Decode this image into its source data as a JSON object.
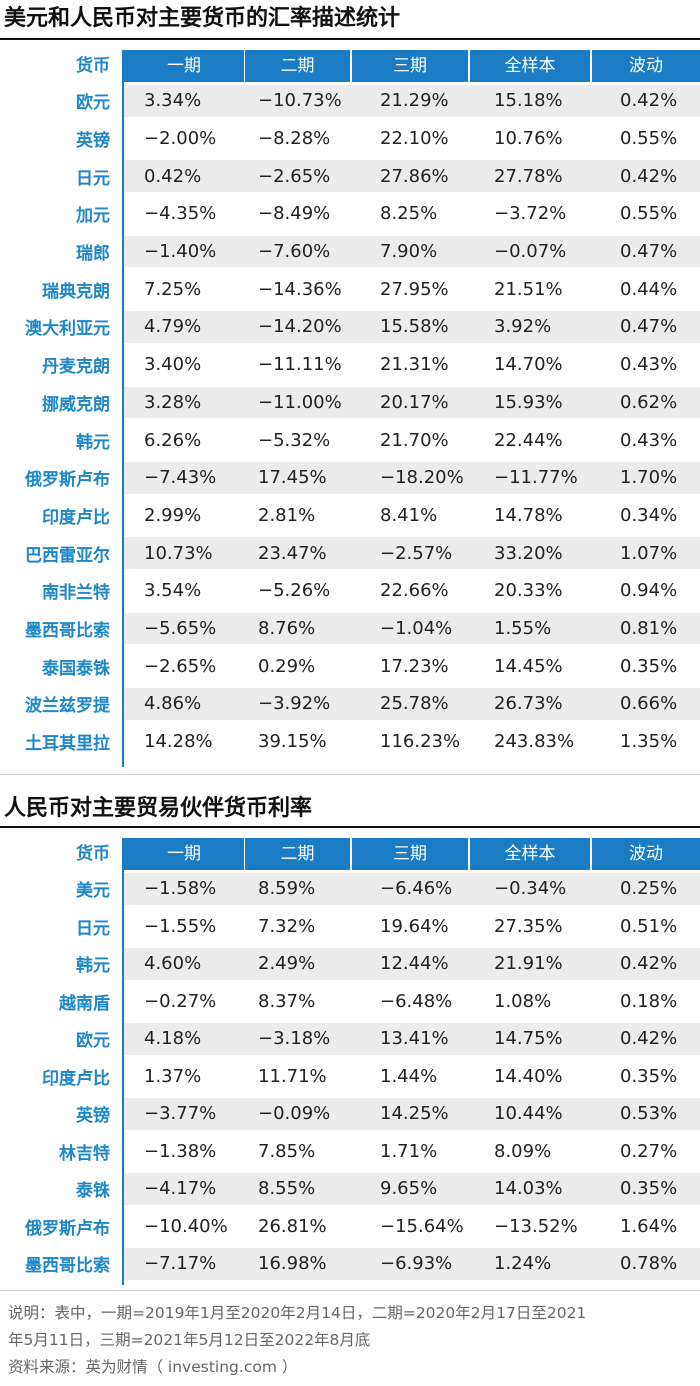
{
  "table1": {
    "title": "美元和人民币对主要货币的汇率描述统计",
    "row_header": "货币",
    "columns": [
      "一期",
      "二期",
      "三期",
      "全样本",
      "波动"
    ],
    "rows": [
      {
        "name": "欧元",
        "values": [
          "3.34%",
          "−10.73%",
          "21.29%",
          "15.18%",
          "0.42%"
        ]
      },
      {
        "name": "英镑",
        "values": [
          "−2.00%",
          "−8.28%",
          "22.10%",
          "10.76%",
          "0.55%"
        ]
      },
      {
        "name": "日元",
        "values": [
          "0.42%",
          "−2.65%",
          "27.86%",
          "27.78%",
          "0.42%"
        ]
      },
      {
        "name": "加元",
        "values": [
          "−4.35%",
          "−8.49%",
          "8.25%",
          "−3.72%",
          "0.55%"
        ]
      },
      {
        "name": "瑞郎",
        "values": [
          "−1.40%",
          "−7.60%",
          "7.90%",
          "−0.07%",
          "0.47%"
        ]
      },
      {
        "name": "瑞典克朗",
        "values": [
          "7.25%",
          "−14.36%",
          "27.95%",
          "21.51%",
          "0.44%"
        ]
      },
      {
        "name": "澳大利亚元",
        "values": [
          "4.79%",
          "−14.20%",
          "15.58%",
          "3.92%",
          "0.47%"
        ]
      },
      {
        "name": "丹麦克朗",
        "values": [
          "3.40%",
          "−11.11%",
          "21.31%",
          "14.70%",
          "0.43%"
        ]
      },
      {
        "name": "挪威克朗",
        "values": [
          "3.28%",
          "−11.00%",
          "20.17%",
          "15.93%",
          "0.62%"
        ]
      },
      {
        "name": "韩元",
        "values": [
          "6.26%",
          "−5.32%",
          "21.70%",
          "22.44%",
          "0.43%"
        ]
      },
      {
        "name": "俄罗斯卢布",
        "values": [
          "−7.43%",
          "17.45%",
          "−18.20%",
          "−11.77%",
          "1.70%"
        ]
      },
      {
        "name": "印度卢比",
        "values": [
          "2.99%",
          "2.81%",
          "8.41%",
          "14.78%",
          "0.34%"
        ]
      },
      {
        "name": "巴西雷亚尔",
        "values": [
          "10.73%",
          "23.47%",
          "−2.57%",
          "33.20%",
          "1.07%"
        ]
      },
      {
        "name": "南非兰特",
        "values": [
          "3.54%",
          "−5.26%",
          "22.66%",
          "20.33%",
          "0.94%"
        ]
      },
      {
        "name": "墨西哥比索",
        "values": [
          "−5.65%",
          "8.76%",
          "−1.04%",
          "1.55%",
          "0.81%"
        ]
      },
      {
        "name": "泰国泰铢",
        "values": [
          "−2.65%",
          "0.29%",
          "17.23%",
          "14.45%",
          "0.35%"
        ]
      },
      {
        "name": "波兰兹罗提",
        "values": [
          "4.86%",
          "−3.92%",
          "25.78%",
          "26.73%",
          "0.66%"
        ]
      },
      {
        "name": "土耳其里拉",
        "values": [
          "14.28%",
          "39.15%",
          "116.23%",
          "243.83%",
          "1.35%"
        ]
      }
    ]
  },
  "table2": {
    "title": "人民币对主要贸易伙伴货币利率",
    "row_header": "货币",
    "columns": [
      "一期",
      "二期",
      "三期",
      "全样本",
      "波动"
    ],
    "rows": [
      {
        "name": "美元",
        "values": [
          "−1.58%",
          "8.59%",
          "−6.46%",
          "−0.34%",
          "0.25%"
        ]
      },
      {
        "name": "日元",
        "values": [
          "−1.55%",
          "7.32%",
          "19.64%",
          "27.35%",
          "0.51%"
        ]
      },
      {
        "name": "韩元",
        "values": [
          "4.60%",
          "2.49%",
          "12.44%",
          "21.91%",
          "0.42%"
        ]
      },
      {
        "name": "越南盾",
        "values": [
          "−0.27%",
          "8.37%",
          "−6.48%",
          "1.08%",
          "0.18%"
        ]
      },
      {
        "name": "欧元",
        "values": [
          "4.18%",
          "−3.18%",
          "13.41%",
          "14.75%",
          "0.42%"
        ]
      },
      {
        "name": "印度卢比",
        "values": [
          "1.37%",
          "11.71%",
          "1.44%",
          "14.40%",
          "0.35%"
        ]
      },
      {
        "name": "英镑",
        "values": [
          "−3.77%",
          "−0.09%",
          "14.25%",
          "10.44%",
          "0.53%"
        ]
      },
      {
        "name": "林吉特",
        "values": [
          "−1.38%",
          "7.85%",
          "1.71%",
          "8.09%",
          "0.27%"
        ]
      },
      {
        "name": "泰铢",
        "values": [
          "−4.17%",
          "8.55%",
          "9.65%",
          "14.03%",
          "0.35%"
        ]
      },
      {
        "name": "俄罗斯卢布",
        "values": [
          "−10.40%",
          "26.81%",
          "−15.64%",
          "−13.52%",
          "1.64%"
        ]
      },
      {
        "name": "墨西哥比索",
        "values": [
          "−7.17%",
          "16.98%",
          "−6.93%",
          "1.24%",
          "0.78%"
        ]
      }
    ]
  },
  "note": {
    "line1": "说明：表中，一期=2019年1月至2020年2月14日，二期=2020年2月17日至2021",
    "line2": "年5月11日，三期=2021年5月12日至2022年8月底",
    "line3": "资料来源：英为财情（ investing.com ）"
  }
}
